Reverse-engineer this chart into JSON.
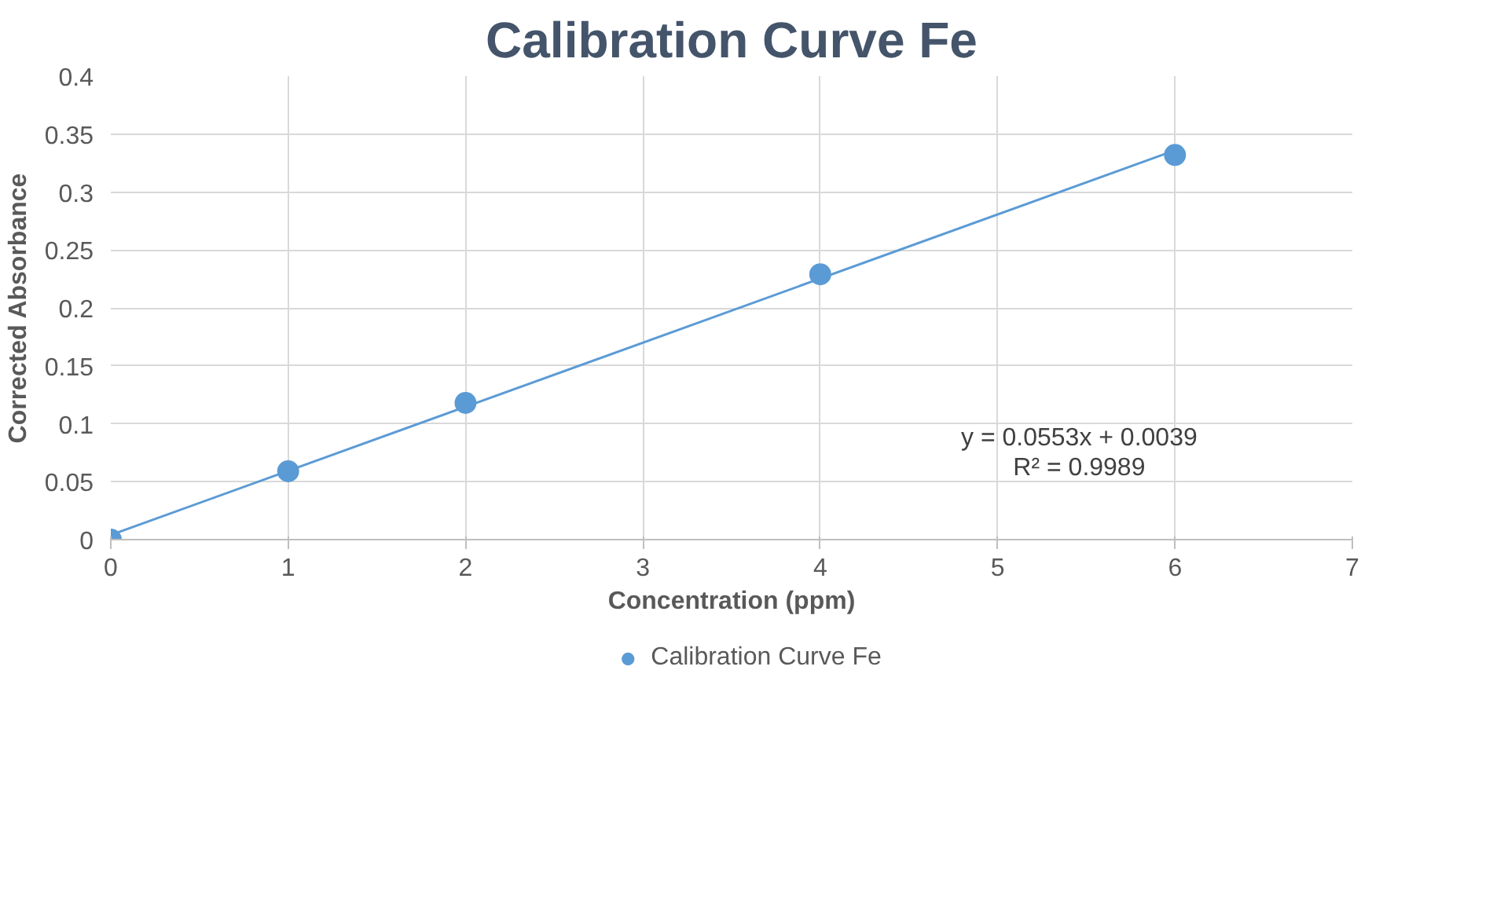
{
  "chart_data": {
    "type": "scatter",
    "title": "Calibration Curve Fe",
    "xlabel": "Concentration (ppm)",
    "ylabel": "Corrected Absorbance",
    "series": [
      {
        "name": "Calibration Curve Fe",
        "color": "#5b9bd5",
        "x": [
          0,
          1,
          2,
          4,
          6
        ],
        "values": [
          0,
          0.059,
          0.118,
          0.229,
          0.332
        ],
        "marker": "circle"
      },
      {
        "type": "line",
        "color": "#5b9bd5",
        "x": [
          0,
          6
        ],
        "values": [
          0.004,
          0.336
        ],
        "line_style": "solid"
      }
    ],
    "annotations": [
      "y = 0.0553x + 0.0039",
      "R² = 0.9989"
    ],
    "xlim": [
      0,
      7
    ],
    "xticks": [
      0,
      1,
      2,
      3,
      4,
      5,
      6,
      7
    ],
    "ylim": [
      0,
      0.4
    ],
    "yticks": [
      0,
      0.05,
      0.1,
      0.15,
      0.2,
      0.25,
      0.3,
      0.35,
      0.4
    ],
    "grid": true,
    "legend": "bottom"
  }
}
